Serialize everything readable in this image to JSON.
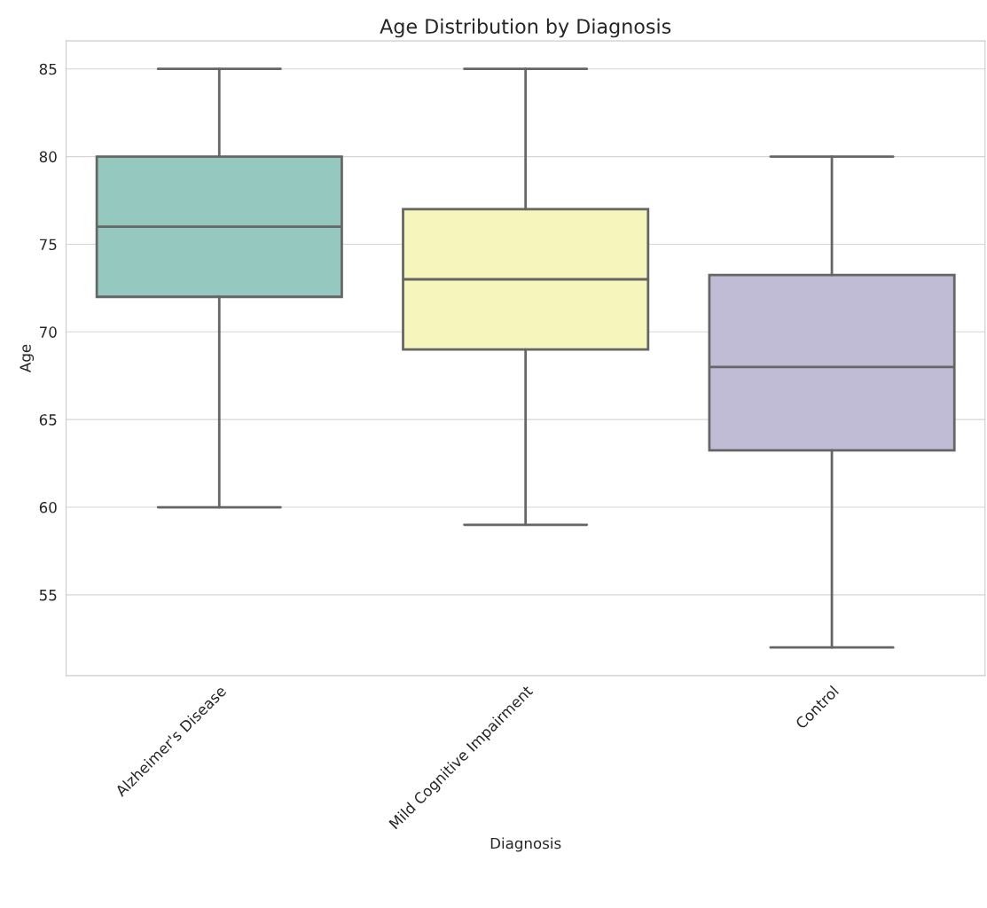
{
  "chart_data": {
    "type": "box",
    "title": "Age Distribution by Diagnosis",
    "xlabel": "Diagnosis",
    "ylabel": "Age",
    "categories": [
      "Alzheimer's Disease",
      "Mild Cognitive Impairment",
      "Control"
    ],
    "boxes": [
      {
        "low": 60,
        "q1": 72,
        "median": 76,
        "q3": 80,
        "high": 85
      },
      {
        "low": 59,
        "q1": 69,
        "median": 73,
        "q3": 77,
        "high": 85
      },
      {
        "low": 52,
        "q1": 63.25,
        "median": 68,
        "q3": 73.25,
        "high": 80
      }
    ],
    "colors": [
      "#95c8be",
      "#f5f5bc",
      "#c0bcd6"
    ],
    "ylim": [
      50.4,
      86.6
    ],
    "yticks": [
      55,
      60,
      65,
      70,
      75,
      80,
      85
    ],
    "grid": "y"
  }
}
